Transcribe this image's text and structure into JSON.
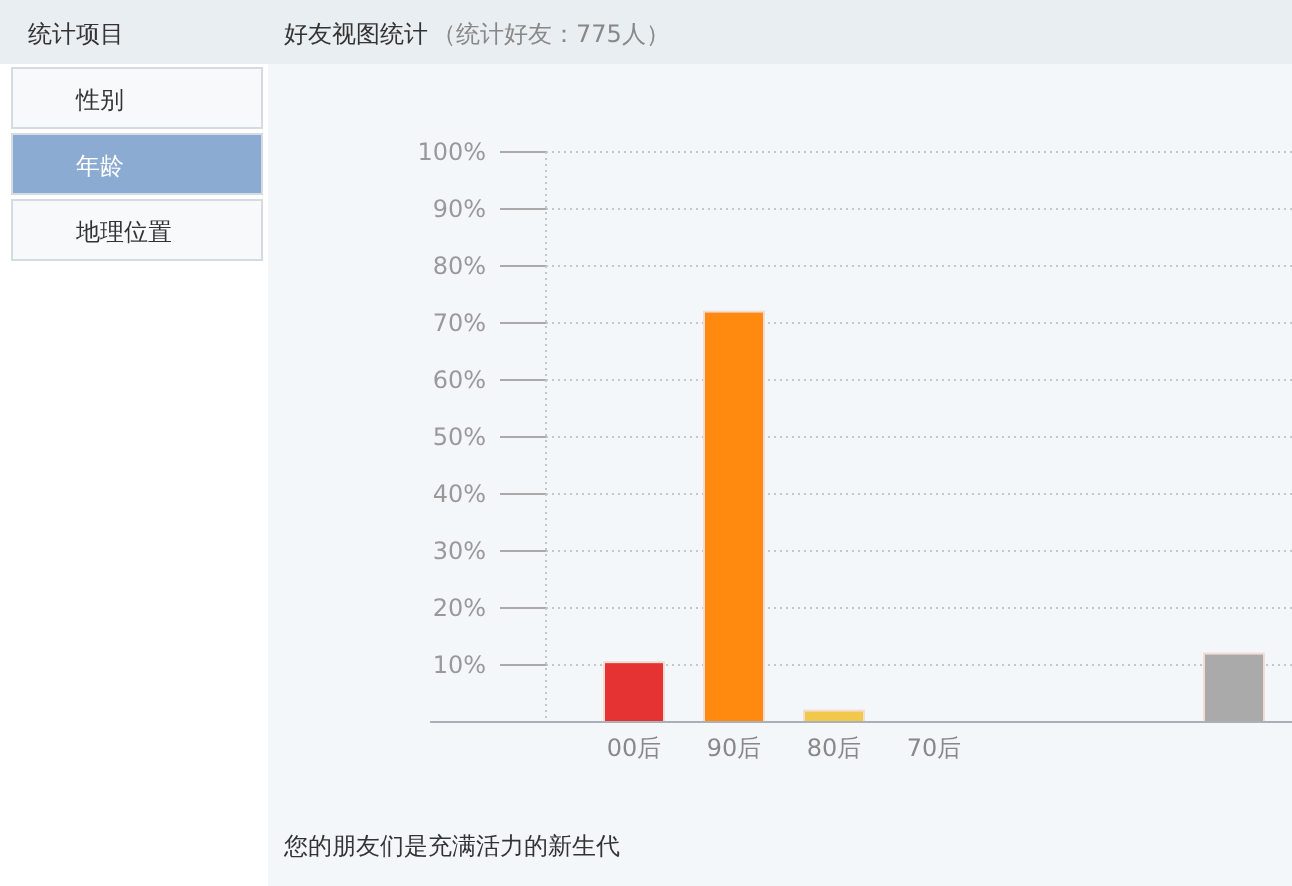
{
  "chart_data": {
    "type": "bar",
    "title": "好友视图统计",
    "subtitle": "（统计好友：775人）",
    "categories": [
      "00后",
      "90后",
      "80后",
      "70后",
      null,
      null,
      null
    ],
    "values": [
      10.5,
      72,
      2,
      0,
      0,
      0,
      12
    ],
    "colors": [
      "#e53232",
      "#ff8a0f",
      "#f2c84b",
      "#cccccc",
      "#cccccc",
      "#cccccc",
      "#aaaaaa"
    ],
    "ylim": [
      0,
      100
    ],
    "yticks": [
      {
        "value": 10,
        "label": "10%"
      },
      {
        "value": 20,
        "label": "20%"
      },
      {
        "value": 30,
        "label": "30%"
      },
      {
        "value": 40,
        "label": "40%"
      },
      {
        "value": 50,
        "label": "50%"
      },
      {
        "value": 60,
        "label": "60%"
      },
      {
        "value": 70,
        "label": "70%"
      },
      {
        "value": 80,
        "label": "80%"
      },
      {
        "value": 90,
        "label": "90%"
      },
      {
        "value": 100,
        "label": "100%"
      }
    ],
    "grid": "y",
    "annotations": [
      "您的朋友们是充满活力的新生代",
      "统计项目",
      "性别",
      "年龄",
      "地理位置"
    ]
  }
}
